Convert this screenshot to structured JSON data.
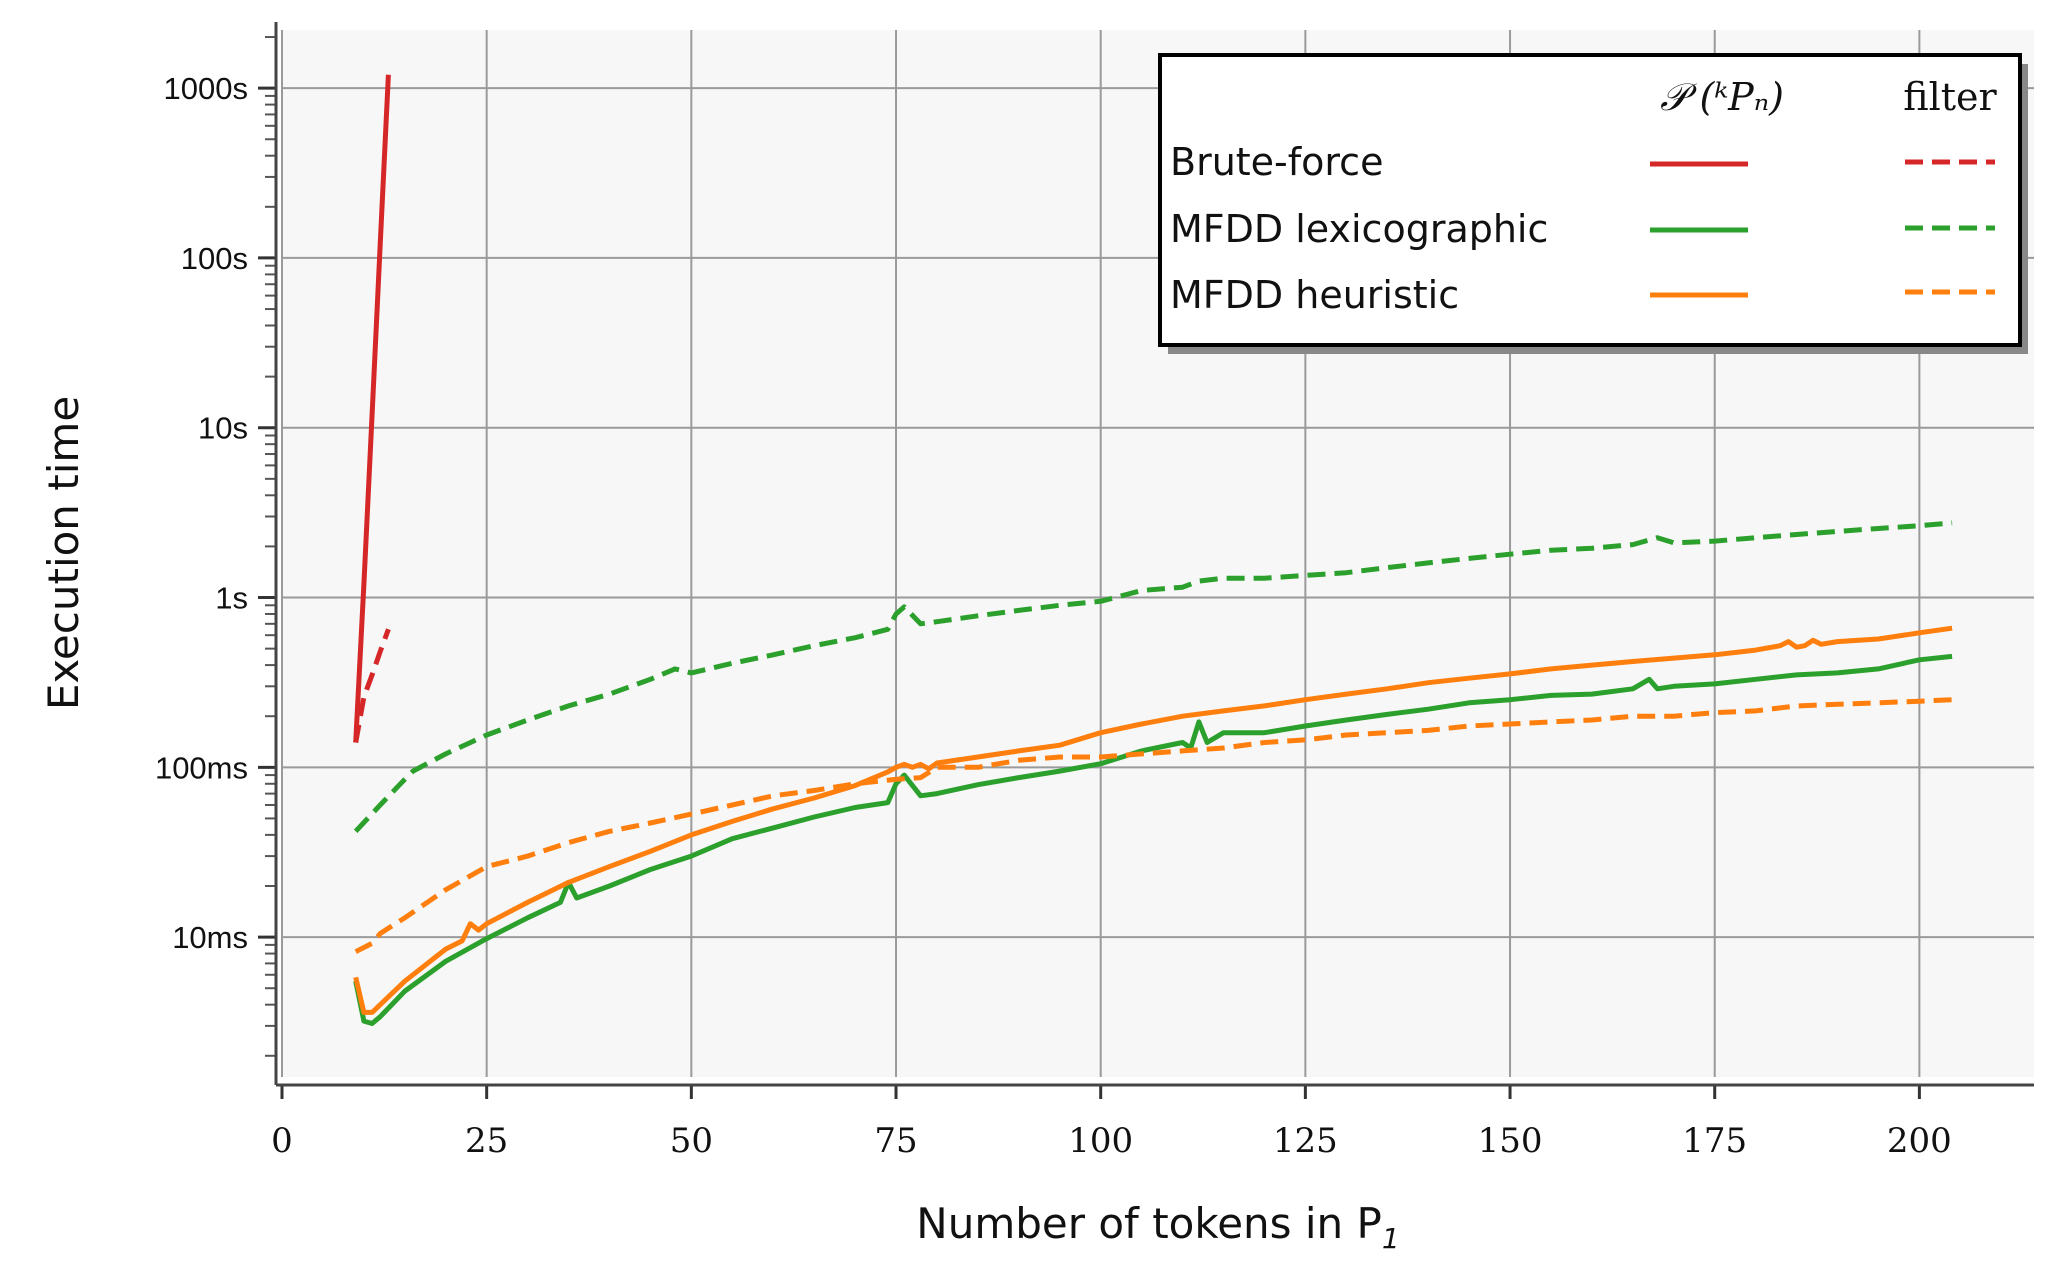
{
  "chart_data": {
    "type": "line",
    "title": "",
    "xlabel": "Number of tokens in P",
    "xlabel_subscript": "1",
    "ylabel": "Execution time",
    "xlim": [
      0,
      214
    ],
    "ylim": [
      0.0015,
      2200
    ],
    "yscale": "log",
    "grid": true,
    "legend_position": "top-right",
    "x_ticks": [
      0,
      25,
      50,
      75,
      100,
      125,
      150,
      175,
      200
    ],
    "y_ticks": [
      {
        "value": 0.01,
        "label": "10ms"
      },
      {
        "value": 0.1,
        "label": "100ms"
      },
      {
        "value": 1,
        "label": "1s"
      },
      {
        "value": 10,
        "label": "10s"
      },
      {
        "value": 100,
        "label": "100s"
      },
      {
        "value": 1000,
        "label": "1000s"
      }
    ],
    "legend": {
      "column_headers": [
        "𝒫 (ᵏPₙ)",
        "filter"
      ],
      "rows": [
        "Brute-force",
        "MFDD lexicographic",
        "MFDD heuristic"
      ]
    },
    "series": [
      {
        "name": "Brute-force",
        "method": "P",
        "color": "#d62728",
        "dashed": false,
        "x": [
          9,
          10,
          11,
          12,
          13
        ],
        "y": [
          0.14,
          1.2,
          12,
          120,
          1200
        ]
      },
      {
        "name": "Brute-force",
        "method": "filter",
        "color": "#d62728",
        "dashed": true,
        "x": [
          9,
          10,
          11,
          12,
          13
        ],
        "y": [
          0.14,
          0.26,
          0.35,
          0.48,
          0.65
        ]
      },
      {
        "name": "MFDD lexicographic",
        "method": "P",
        "color": "#2ca02c",
        "dashed": false,
        "x": [
          9,
          10,
          11,
          12,
          15,
          20,
          25,
          30,
          34,
          35,
          36,
          40,
          45,
          50,
          55,
          60,
          65,
          70,
          74,
          75,
          76,
          78,
          80,
          85,
          90,
          95,
          100,
          105,
          110,
          111,
          112,
          113,
          115,
          120,
          125,
          130,
          135,
          140,
          145,
          150,
          155,
          160,
          165,
          167,
          168,
          170,
          175,
          180,
          185,
          190,
          195,
          200,
          204
        ],
        "y": [
          0.0055,
          0.0032,
          0.0031,
          0.0034,
          0.0048,
          0.0072,
          0.0098,
          0.013,
          0.016,
          0.021,
          0.017,
          0.02,
          0.025,
          0.03,
          0.038,
          0.044,
          0.051,
          0.058,
          0.062,
          0.08,
          0.09,
          0.068,
          0.07,
          0.079,
          0.087,
          0.095,
          0.105,
          0.125,
          0.14,
          0.13,
          0.185,
          0.14,
          0.16,
          0.16,
          0.175,
          0.19,
          0.205,
          0.22,
          0.24,
          0.25,
          0.265,
          0.27,
          0.29,
          0.33,
          0.29,
          0.3,
          0.31,
          0.33,
          0.35,
          0.36,
          0.38,
          0.43,
          0.45
        ]
      },
      {
        "name": "MFDD lexicographic",
        "method": "filter",
        "color": "#2ca02c",
        "dashed": true,
        "x": [
          9,
          12,
          15,
          16,
          20,
          25,
          30,
          35,
          40,
          45,
          48,
          50,
          55,
          60,
          65,
          70,
          74,
          75,
          76,
          78,
          80,
          85,
          90,
          95,
          100,
          105,
          110,
          112,
          115,
          120,
          125,
          130,
          135,
          140,
          145,
          150,
          155,
          160,
          165,
          168,
          170,
          175,
          180,
          185,
          190,
          195,
          200,
          204
        ],
        "y": [
          0.042,
          0.06,
          0.085,
          0.095,
          0.12,
          0.155,
          0.19,
          0.23,
          0.27,
          0.33,
          0.38,
          0.36,
          0.41,
          0.46,
          0.52,
          0.58,
          0.65,
          0.8,
          0.88,
          0.7,
          0.72,
          0.78,
          0.84,
          0.9,
          0.95,
          1.1,
          1.15,
          1.25,
          1.3,
          1.3,
          1.35,
          1.4,
          1.5,
          1.6,
          1.7,
          1.8,
          1.9,
          1.95,
          2.05,
          2.25,
          2.1,
          2.15,
          2.25,
          2.35,
          2.45,
          2.55,
          2.65,
          2.75
        ]
      },
      {
        "name": "MFDD heuristic",
        "method": "P",
        "color": "#ff7f0e",
        "dashed": false,
        "x": [
          9,
          10,
          11,
          12,
          15,
          20,
          22,
          23,
          24,
          25,
          30,
          35,
          40,
          45,
          50,
          55,
          60,
          65,
          70,
          74,
          75,
          76,
          77,
          78,
          79,
          80,
          85,
          90,
          95,
          100,
          105,
          110,
          115,
          120,
          125,
          130,
          135,
          140,
          145,
          150,
          155,
          160,
          165,
          170,
          175,
          180,
          183,
          184,
          185,
          186,
          187,
          188,
          190,
          195,
          200,
          204
        ],
        "y": [
          0.0058,
          0.0036,
          0.0036,
          0.004,
          0.0055,
          0.0085,
          0.0095,
          0.012,
          0.011,
          0.012,
          0.016,
          0.021,
          0.026,
          0.032,
          0.04,
          0.048,
          0.057,
          0.066,
          0.078,
          0.094,
          0.1,
          0.104,
          0.1,
          0.104,
          0.098,
          0.106,
          0.115,
          0.125,
          0.135,
          0.16,
          0.18,
          0.2,
          0.215,
          0.23,
          0.25,
          0.27,
          0.29,
          0.315,
          0.335,
          0.355,
          0.38,
          0.4,
          0.42,
          0.44,
          0.46,
          0.49,
          0.52,
          0.55,
          0.51,
          0.52,
          0.56,
          0.53,
          0.55,
          0.57,
          0.62,
          0.66
        ]
      },
      {
        "name": "MFDD heuristic",
        "method": "filter",
        "color": "#ff7f0e",
        "dashed": true,
        "x": [
          9,
          11,
          12,
          15,
          20,
          25,
          30,
          35,
          40,
          45,
          50,
          55,
          60,
          65,
          70,
          75,
          78,
          80,
          85,
          90,
          95,
          100,
          105,
          110,
          115,
          120,
          125,
          130,
          135,
          140,
          145,
          150,
          155,
          160,
          165,
          170,
          175,
          180,
          185,
          190,
          195,
          200,
          204
        ],
        "y": [
          0.0082,
          0.0092,
          0.0105,
          0.013,
          0.019,
          0.026,
          0.03,
          0.036,
          0.042,
          0.047,
          0.053,
          0.06,
          0.068,
          0.073,
          0.08,
          0.085,
          0.087,
          0.1,
          0.1,
          0.11,
          0.115,
          0.115,
          0.12,
          0.125,
          0.13,
          0.14,
          0.145,
          0.155,
          0.16,
          0.165,
          0.175,
          0.18,
          0.185,
          0.19,
          0.2,
          0.2,
          0.21,
          0.215,
          0.23,
          0.235,
          0.24,
          0.245,
          0.25
        ]
      }
    ]
  }
}
